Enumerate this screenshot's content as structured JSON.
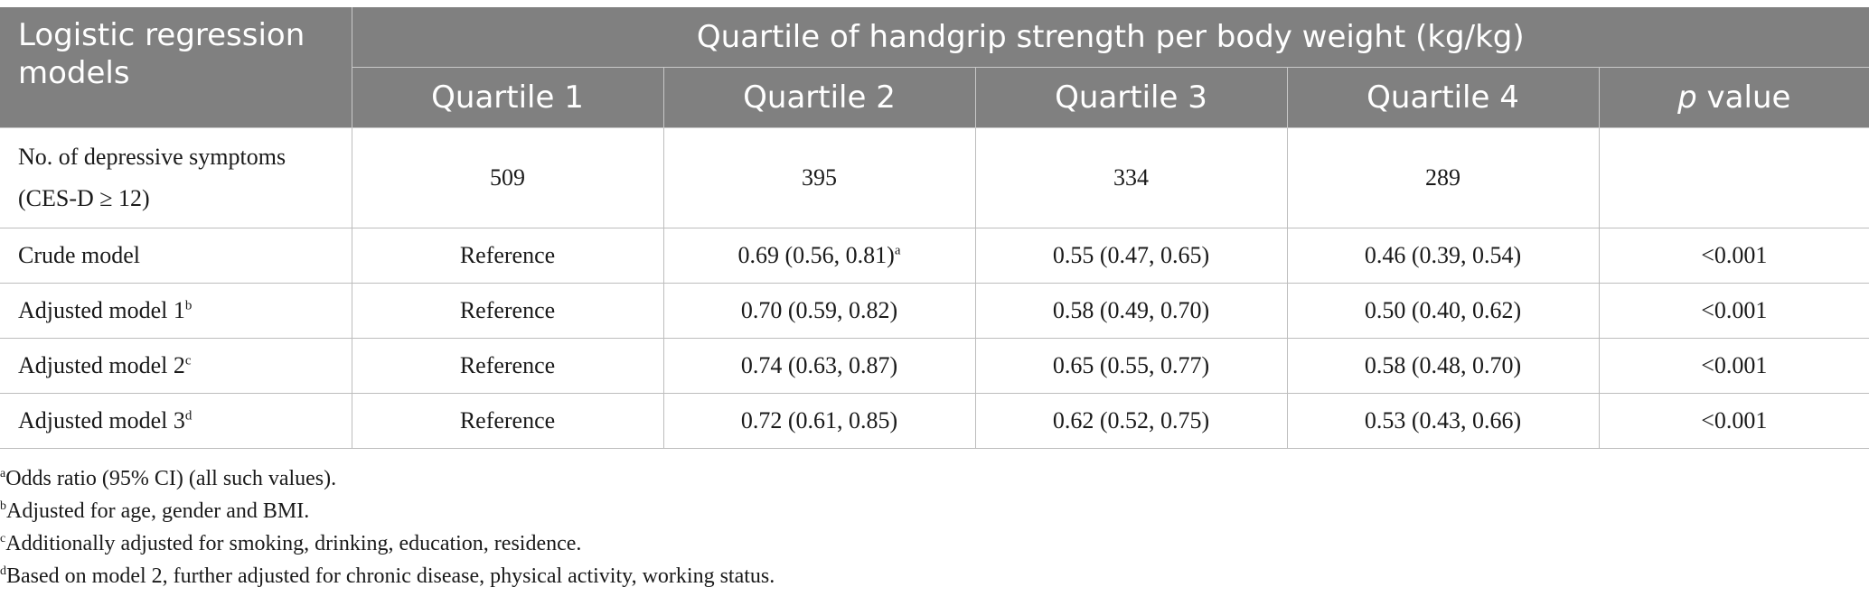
{
  "table": {
    "corner_header": "Logistic regression models",
    "span_header": "Quartile of handgrip strength per body weight (kg/kg)",
    "columns": [
      "Quartile 1",
      "Quartile 2",
      "Quartile 3",
      "Quartile 4"
    ],
    "pvalue_header_italic": "p",
    "pvalue_header_rest": " value",
    "rows": [
      {
        "label_line1": "No. of depressive symptoms",
        "label_line2": "(CES-D ≥ 12)",
        "values": [
          "509",
          "395",
          "334",
          "289"
        ],
        "p": ""
      },
      {
        "label": "Crude model",
        "label_sup": "",
        "values": [
          "Reference",
          "0.69 (0.56, 0.81)",
          "0.55 (0.47, 0.65)",
          "0.46 (0.39, 0.54)"
        ],
        "q2_sup": "a",
        "p": "<0.001"
      },
      {
        "label": "Adjusted model 1",
        "label_sup": "b",
        "values": [
          "Reference",
          "0.70 (0.59, 0.82)",
          "0.58 (0.49, 0.70)",
          "0.50 (0.40, 0.62)"
        ],
        "p": "<0.001"
      },
      {
        "label": "Adjusted model 2",
        "label_sup": "c",
        "values": [
          "Reference",
          "0.74 (0.63, 0.87)",
          "0.65 (0.55, 0.77)",
          "0.58 (0.48, 0.70)"
        ],
        "p": "<0.001"
      },
      {
        "label": "Adjusted model 3",
        "label_sup": "d",
        "values": [
          "Reference",
          "0.72 (0.61, 0.85)",
          "0.62 (0.52, 0.75)",
          "0.53 (0.43, 0.66)"
        ],
        "p": "<0.001"
      }
    ]
  },
  "footnotes": [
    {
      "mark": "a",
      "text": "Odds ratio (95% CI) (all such values)."
    },
    {
      "mark": "b",
      "text": "Adjusted for age, gender and BMI."
    },
    {
      "mark": "c",
      "text": "Additionally adjusted for smoking, drinking, education, residence."
    },
    {
      "mark": "d",
      "text": "Based on model 2, further adjusted for chronic disease, physical activity, working status."
    }
  ],
  "colors": {
    "header_bg": "#808080",
    "header_text": "#ffffff",
    "grid": "#bdbdbd"
  }
}
